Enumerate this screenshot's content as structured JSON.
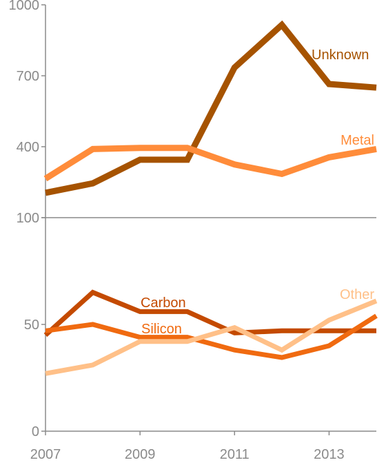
{
  "chart_data": [
    {
      "type": "line",
      "panel": "top",
      "x": [
        2007,
        2008,
        2009,
        2010,
        2011,
        2012,
        2013,
        2014
      ],
      "ylim": [
        100,
        1000
      ],
      "yticks": [
        100,
        400,
        700,
        1000
      ],
      "grid": false,
      "series": [
        {
          "name": "Unknown",
          "color": "#a65300",
          "values": [
            205,
            245,
            345,
            345,
            735,
            915,
            665,
            650
          ]
        },
        {
          "name": "Metal",
          "color": "#ff8c3a",
          "values": [
            265,
            390,
            395,
            395,
            325,
            285,
            355,
            390
          ]
        }
      ]
    },
    {
      "type": "line",
      "panel": "bottom",
      "x": [
        2007,
        2008,
        2009,
        2010,
        2011,
        2012,
        2013,
        2014
      ],
      "ylim": [
        0,
        100
      ],
      "yticks": [
        0,
        50,
        100
      ],
      "xticks": [
        2007,
        2009,
        2011,
        2013
      ],
      "grid": false,
      "series": [
        {
          "name": "Carbon",
          "color": "#c44a00",
          "values": [
            45,
            65,
            56,
            56,
            46,
            47,
            47,
            47
          ]
        },
        {
          "name": "Silicon",
          "color": "#f06a10",
          "values": [
            47,
            50,
            44,
            44,
            38,
            34.5,
            40,
            54
          ]
        },
        {
          "name": "Other",
          "color": "#ffc088",
          "values": [
            27,
            31,
            42,
            42,
            48.5,
            38,
            52,
            61
          ]
        }
      ]
    }
  ]
}
